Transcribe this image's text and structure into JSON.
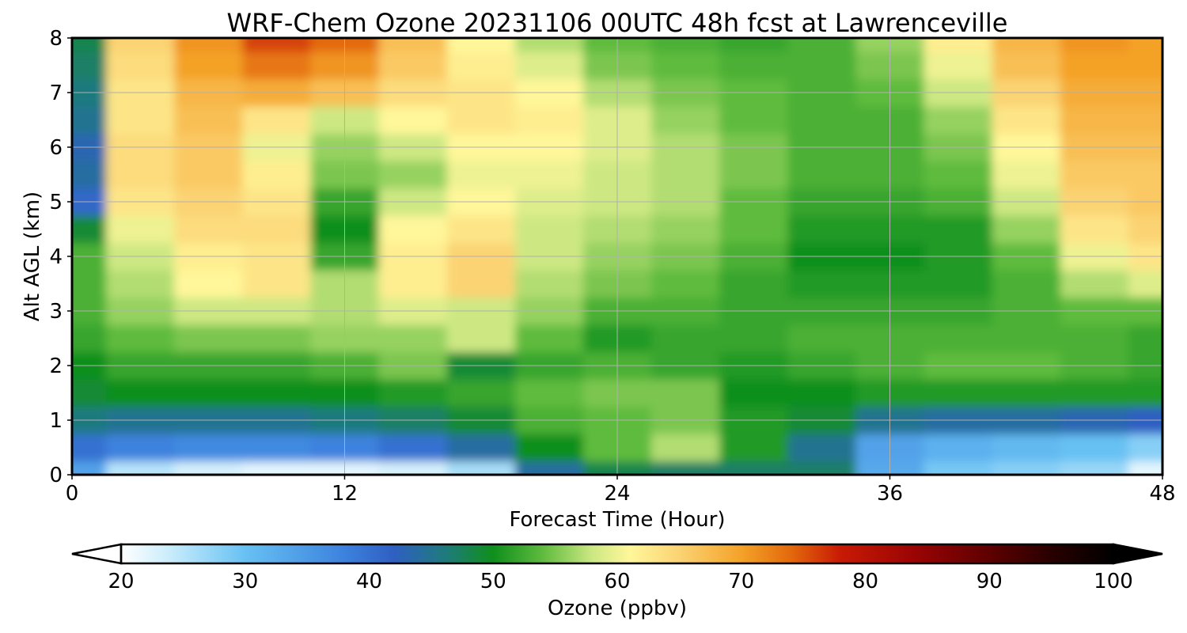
{
  "chart_data": {
    "type": "heatmap",
    "title": "WRF-Chem Ozone  20231106 00UTC 48h fcst at Lawrenceville",
    "xlabel": "Forecast Time (Hour)",
    "ylabel": "Alt AGL (km)",
    "xlim": [
      0,
      48
    ],
    "ylim": [
      0,
      8
    ],
    "x_ticks": [
      "0",
      "12",
      "24",
      "36",
      "48"
    ],
    "y_ticks": [
      "0",
      "1",
      "2",
      "3",
      "4",
      "5",
      "6",
      "7",
      "8"
    ],
    "grid": true,
    "x": [
      0,
      3,
      6,
      9,
      12,
      15,
      18,
      21,
      24,
      27,
      30,
      33,
      36,
      39,
      42,
      45,
      48
    ],
    "y": [
      0,
      0.5,
      1,
      1.5,
      2,
      2.5,
      3,
      3.5,
      4,
      4.5,
      5,
      5.5,
      6,
      6.5,
      7,
      7.5,
      8
    ],
    "z_units": "ppbv",
    "z": [
      [
        34,
        25,
        23,
        22,
        22,
        23,
        26,
        44,
        48,
        47,
        47,
        47,
        33,
        29,
        28,
        27,
        22
      ],
      [
        40,
        38,
        37,
        37,
        38,
        40,
        44,
        50,
        54,
        57,
        51,
        45,
        34,
        32,
        31,
        30,
        28
      ],
      [
        46,
        45,
        45,
        45,
        46,
        47,
        49,
        53,
        54,
        55,
        51,
        49,
        45,
        44,
        44,
        43,
        42
      ],
      [
        49,
        50,
        50,
        50,
        50,
        51,
        52,
        54,
        55,
        55,
        50,
        50,
        51,
        51,
        51,
        51,
        51
      ],
      [
        50,
        52,
        52,
        52,
        53,
        55,
        49,
        52,
        53,
        52,
        51,
        52,
        53,
        54,
        54,
        53,
        52
      ],
      [
        52,
        54,
        55,
        55,
        56,
        56,
        58,
        54,
        51,
        52,
        52,
        53,
        53,
        53,
        53,
        53,
        52
      ],
      [
        53,
        56,
        58,
        58,
        57,
        59,
        58,
        56,
        53,
        53,
        52,
        52,
        52,
        52,
        53,
        54,
        54
      ],
      [
        53,
        57,
        61,
        63,
        57,
        62,
        65,
        57,
        55,
        54,
        52,
        51,
        51,
        51,
        53,
        57,
        59
      ],
      [
        53,
        58,
        62,
        63,
        52,
        62,
        65,
        58,
        56,
        55,
        53,
        50,
        50,
        51,
        54,
        60,
        63
      ],
      [
        49,
        60,
        64,
        64,
        50,
        61,
        63,
        58,
        57,
        56,
        54,
        51,
        51,
        51,
        56,
        63,
        65
      ],
      [
        41,
        63,
        65,
        63,
        52,
        58,
        61,
        59,
        58,
        57,
        54,
        52,
        52,
        53,
        58,
        65,
        66
      ],
      [
        44,
        64,
        66,
        62,
        55,
        56,
        60,
        60,
        58,
        57,
        55,
        53,
        53,
        54,
        60,
        66,
        66
      ],
      [
        43,
        64,
        66,
        60,
        56,
        58,
        61,
        61,
        59,
        57,
        55,
        53,
        53,
        55,
        61,
        67,
        67
      ],
      [
        45,
        63,
        67,
        63,
        58,
        61,
        63,
        62,
        59,
        56,
        54,
        53,
        53,
        56,
        63,
        68,
        68
      ],
      [
        46,
        63,
        68,
        69,
        67,
        64,
        63,
        61,
        57,
        55,
        54,
        53,
        54,
        58,
        65,
        69,
        69
      ],
      [
        47,
        64,
        70,
        73,
        71,
        66,
        62,
        59,
        55,
        54,
        53,
        53,
        55,
        60,
        67,
        70,
        70
      ],
      [
        48,
        65,
        71,
        76,
        74,
        67,
        61,
        57,
        54,
        53,
        52,
        53,
        56,
        62,
        68,
        71,
        70
      ]
    ],
    "colorbar": {
      "label": "Ozone  (ppbv)",
      "min": 20,
      "max": 100,
      "ticks": [
        "20",
        "30",
        "40",
        "50",
        "60",
        "70",
        "80",
        "90",
        "100"
      ],
      "extend": "both",
      "colors": [
        "#ffffff",
        "#c8ecfb",
        "#67c1f3",
        "#3c82de",
        "#2f5fc2",
        "#1f7a7f",
        "#0f8f1c",
        "#5fbb3e",
        "#cde883",
        "#fff79a",
        "#fbd373",
        "#f4a228",
        "#e3690c",
        "#c81a05",
        "#9a0404",
        "#5e0000",
        "#280000",
        "#000000"
      ],
      "stops": [
        20,
        24,
        30,
        38,
        42,
        46,
        50,
        54,
        58,
        61,
        65,
        70,
        74,
        78,
        84,
        90,
        95,
        100
      ]
    }
  }
}
